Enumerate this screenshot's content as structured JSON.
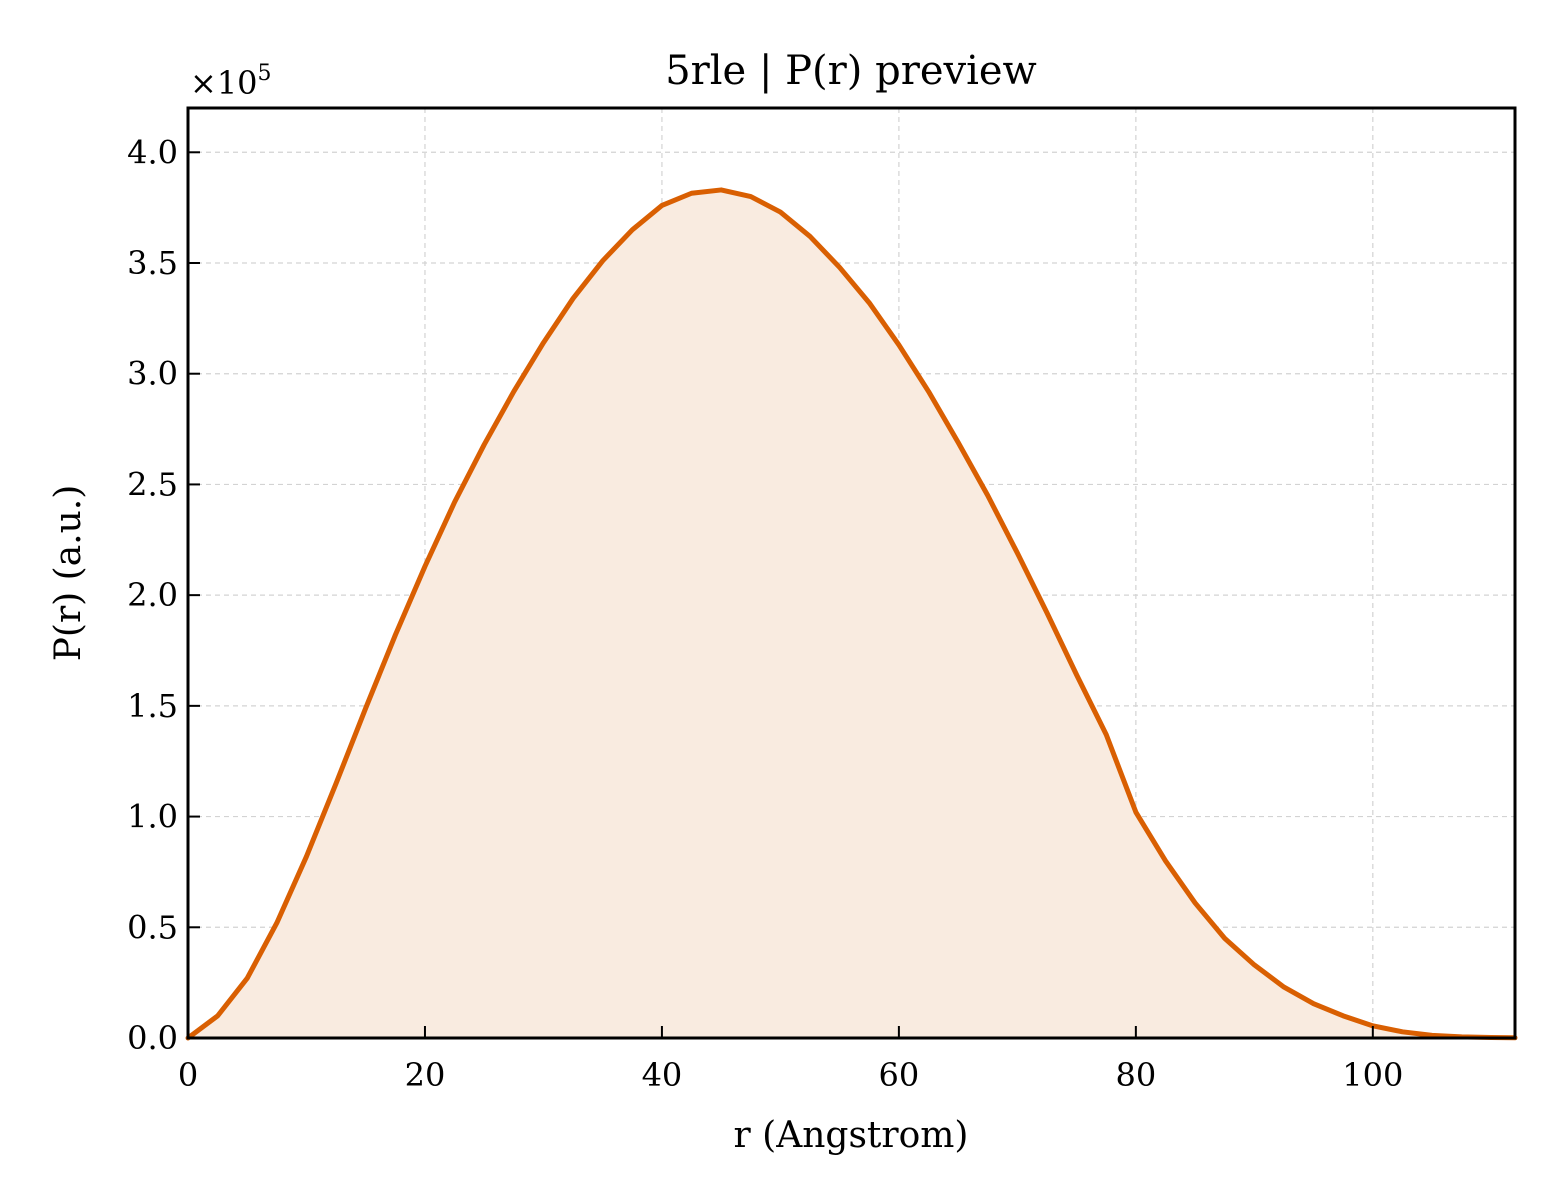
{
  "chart_data": {
    "type": "area",
    "title": "5rle | P(r) preview",
    "xlabel": "r (Angstrom)",
    "ylabel": "P(r) (a.u.)",
    "y_scale_label": "×10",
    "y_scale_exponent": "5",
    "xlim": [
      0,
      112
    ],
    "ylim": [
      0,
      4.2
    ],
    "x_ticks": [
      0,
      20,
      40,
      60,
      80,
      100
    ],
    "y_ticks": [
      0.0,
      0.5,
      1.0,
      1.5,
      2.0,
      2.5,
      3.0,
      3.5,
      4.0
    ],
    "x_tick_labels": [
      "0",
      "20",
      "40",
      "60",
      "80",
      "100"
    ],
    "y_tick_labels": [
      "0.0",
      "0.5",
      "1.0",
      "1.5",
      "2.0",
      "2.5",
      "3.0",
      "3.5",
      "4.0"
    ],
    "grid": true,
    "line_color": "#d95f02",
    "fill_color": "#f9ebe0",
    "series": [
      {
        "x": [
          0,
          2.5,
          5,
          7.5,
          10,
          12.5,
          15,
          17.5,
          20,
          22.5,
          25,
          27.5,
          30,
          32.5,
          35,
          37.5,
          40,
          42.5,
          45,
          47.5,
          50,
          52.5,
          55,
          57.5,
          60,
          62.5,
          65,
          67.5,
          70,
          72.5,
          75,
          77.5,
          80,
          82.5,
          85,
          87.5,
          90,
          92.5,
          95,
          97.5,
          100,
          102.5,
          105,
          107.5,
          110,
          112
        ],
        "y": [
          0.0,
          0.1,
          0.27,
          0.52,
          0.82,
          1.15,
          1.49,
          1.82,
          2.13,
          2.42,
          2.68,
          2.92,
          3.14,
          3.34,
          3.51,
          3.65,
          3.76,
          3.815,
          3.83,
          3.8,
          3.73,
          3.62,
          3.48,
          3.32,
          3.13,
          2.92,
          2.69,
          2.45,
          2.19,
          1.92,
          1.64,
          1.37,
          1.02,
          0.8,
          0.61,
          0.45,
          0.33,
          0.23,
          0.155,
          0.1,
          0.055,
          0.028,
          0.012,
          0.005,
          0.002,
          0.001
        ]
      }
    ]
  }
}
